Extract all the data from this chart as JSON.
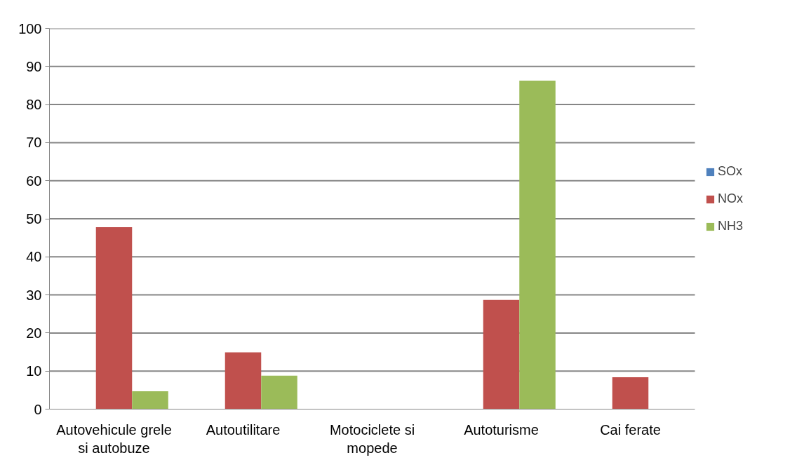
{
  "chart_data": {
    "type": "bar",
    "categories": [
      "Autovehicule grele si autobuze",
      "Autoutilitare",
      "Motociclete si mopede",
      "Autoturisme",
      "Cai ferate"
    ],
    "series": [
      {
        "name": "SOx",
        "color": "#4f81bd",
        "values": [
          0,
          0,
          0,
          0,
          0
        ]
      },
      {
        "name": "NOx",
        "color": "#c0504d",
        "values": [
          47.8,
          14.9,
          0,
          28.7,
          8.4
        ]
      },
      {
        "name": "NH3",
        "color": "#9bbb59",
        "values": [
          4.7,
          8.8,
          0,
          86.3,
          0.1
        ]
      }
    ],
    "ylim": [
      0,
      100
    ],
    "yticks": [
      0,
      10,
      20,
      30,
      40,
      50,
      60,
      70,
      80,
      90,
      100
    ],
    "grid": "y",
    "legend": "right"
  }
}
